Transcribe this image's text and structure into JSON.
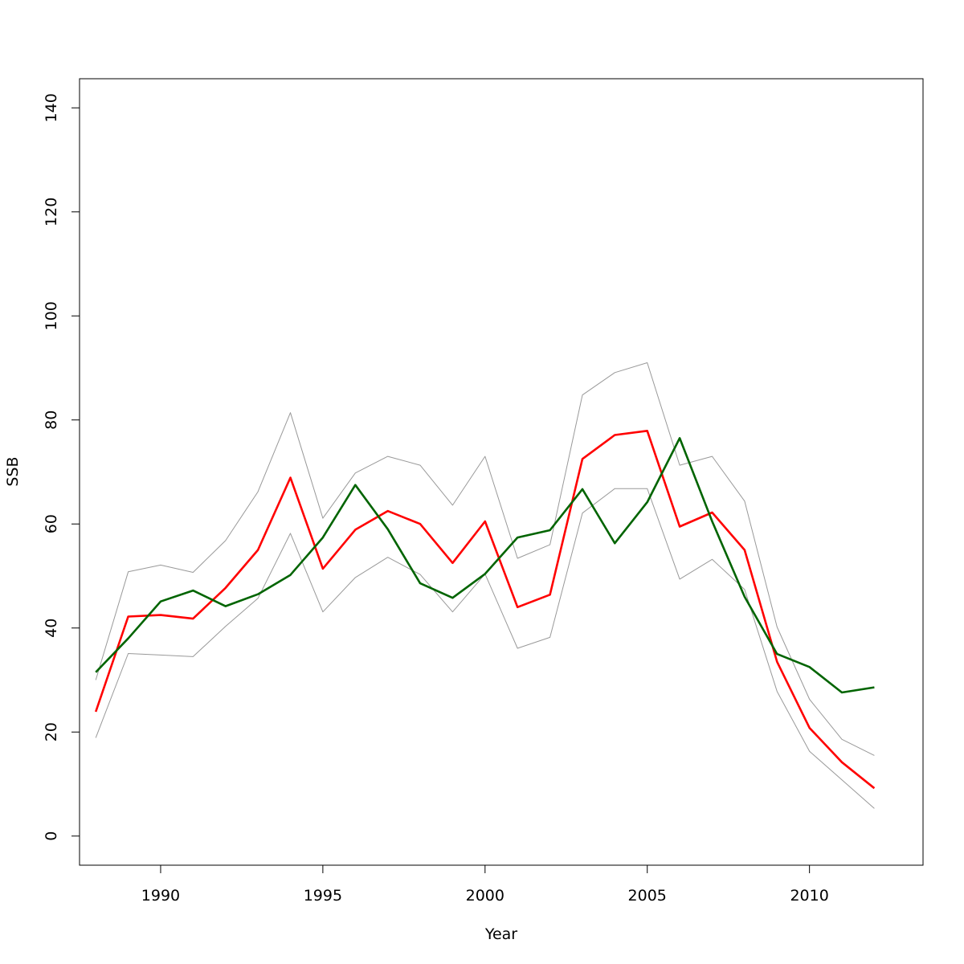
{
  "chart_data": {
    "type": "line",
    "title": "",
    "xlabel": "Year",
    "ylabel": "SSB",
    "xlim": [
      1987.5,
      2013.5
    ],
    "ylim": [
      -5.6,
      145.6
    ],
    "x_ticks": [
      1990,
      1995,
      2000,
      2005,
      2010
    ],
    "y_ticks": [
      0,
      20,
      40,
      60,
      80,
      100,
      120,
      140
    ],
    "grid": false,
    "legend": "none",
    "x": [
      1988,
      1989,
      1990,
      1991,
      1992,
      1993,
      1994,
      1995,
      1996,
      1997,
      1998,
      1999,
      2000,
      2001,
      2002,
      2003,
      2004,
      2005,
      2006,
      2007,
      2008,
      2009,
      2010,
      2011,
      2012
    ],
    "series": [
      {
        "color": "#999999",
        "width": 1,
        "values": [
          30.0,
          50.8,
          52.1,
          50.7,
          56.8,
          66.2,
          81.4,
          61.1,
          69.8,
          73.0,
          71.3,
          63.6,
          73.0,
          53.4,
          56.0,
          84.8,
          89.1,
          91.0,
          71.3,
          73.0,
          64.4,
          40.2,
          26.3,
          18.6,
          15.5
        ]
      },
      {
        "color": "#999999",
        "width": 1,
        "values": [
          18.9,
          35.1,
          34.8,
          34.5,
          40.3,
          45.7,
          58.2,
          43.1,
          49.7,
          53.6,
          50.3,
          43.1,
          50.4,
          36.1,
          38.2,
          62.1,
          66.8,
          66.8,
          49.4,
          53.2,
          47.4,
          27.8,
          16.3,
          10.8,
          5.3
        ]
      },
      {
        "color": "#ff0000",
        "width": 2.6,
        "values": [
          23.9,
          42.2,
          42.5,
          41.8,
          47.7,
          55.0,
          68.9,
          51.4,
          58.9,
          62.5,
          60.0,
          52.5,
          60.5,
          44.0,
          46.4,
          72.5,
          77.1,
          77.9,
          59.5,
          62.2,
          55.0,
          33.5,
          20.8,
          14.2,
          9.2
        ]
      },
      {
        "color": "#006400",
        "width": 2.6,
        "values": [
          31.5,
          38.0,
          45.1,
          47.2,
          44.2,
          46.5,
          50.2,
          57.4,
          67.5,
          59.0,
          48.6,
          45.8,
          50.4,
          57.4,
          58.8,
          66.7,
          56.3,
          64.2,
          76.5,
          60.5,
          46.0,
          35.0,
          32.5,
          27.6,
          28.6
        ]
      }
    ]
  }
}
